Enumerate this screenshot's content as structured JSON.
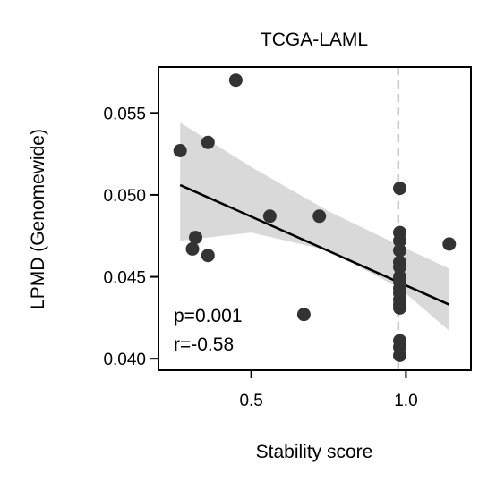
{
  "chart_data": {
    "type": "scatter",
    "title": "TCGA-LAML",
    "xlabel": "Stability score",
    "ylabel": "LPMD (Genomewide)",
    "xlim": [
      0.2,
      1.21
    ],
    "ylim": [
      0.0393,
      0.0578
    ],
    "xticks": [
      0.5,
      1.0
    ],
    "xtick_labels": [
      "0.5",
      "1.0"
    ],
    "yticks": [
      0.04,
      0.045,
      0.05,
      0.055
    ],
    "ytick_labels": [
      "0.040",
      "0.045",
      "0.050",
      "0.055"
    ],
    "points": [
      {
        "x": 0.27,
        "y": 0.0527
      },
      {
        "x": 0.45,
        "y": 0.057
      },
      {
        "x": 0.36,
        "y": 0.0532
      },
      {
        "x": 0.32,
        "y": 0.0474
      },
      {
        "x": 0.31,
        "y": 0.0467
      },
      {
        "x": 0.36,
        "y": 0.0463
      },
      {
        "x": 0.56,
        "y": 0.0487
      },
      {
        "x": 0.72,
        "y": 0.0487
      },
      {
        "x": 0.67,
        "y": 0.0427
      },
      {
        "x": 1.14,
        "y": 0.047
      },
      {
        "x": 0.98,
        "y": 0.0504
      },
      {
        "x": 0.98,
        "y": 0.0477
      },
      {
        "x": 0.98,
        "y": 0.0472
      },
      {
        "x": 0.98,
        "y": 0.0466
      },
      {
        "x": 0.98,
        "y": 0.0459
      },
      {
        "x": 0.98,
        "y": 0.0456
      },
      {
        "x": 0.98,
        "y": 0.045
      },
      {
        "x": 0.98,
        "y": 0.0447
      },
      {
        "x": 0.98,
        "y": 0.0443
      },
      {
        "x": 0.98,
        "y": 0.044
      },
      {
        "x": 0.98,
        "y": 0.0436
      },
      {
        "x": 0.98,
        "y": 0.0433
      },
      {
        "x": 0.98,
        "y": 0.0431
      },
      {
        "x": 0.98,
        "y": 0.0411
      },
      {
        "x": 0.98,
        "y": 0.0407
      },
      {
        "x": 0.98,
        "y": 0.0402
      }
    ],
    "regression": {
      "x": [
        0.27,
        1.14
      ],
      "y": [
        0.0506,
        0.0433
      ]
    },
    "confidence_band": {
      "x": [
        0.27,
        0.5,
        0.75,
        0.98,
        1.14
      ],
      "lower": [
        0.0472,
        0.0477,
        0.0466,
        0.0443,
        0.0417
      ],
      "upper": [
        0.0544,
        0.0517,
        0.049,
        0.0469,
        0.0455
      ]
    },
    "reference_line_x": 0.975,
    "annotations": [
      "p=0.001",
      "r=-0.58"
    ],
    "colors": {
      "points": "#333333",
      "line": "#000000",
      "band": "#d9d9d9",
      "reference": "#cccccc"
    },
    "grid": false,
    "legend": "none"
  }
}
